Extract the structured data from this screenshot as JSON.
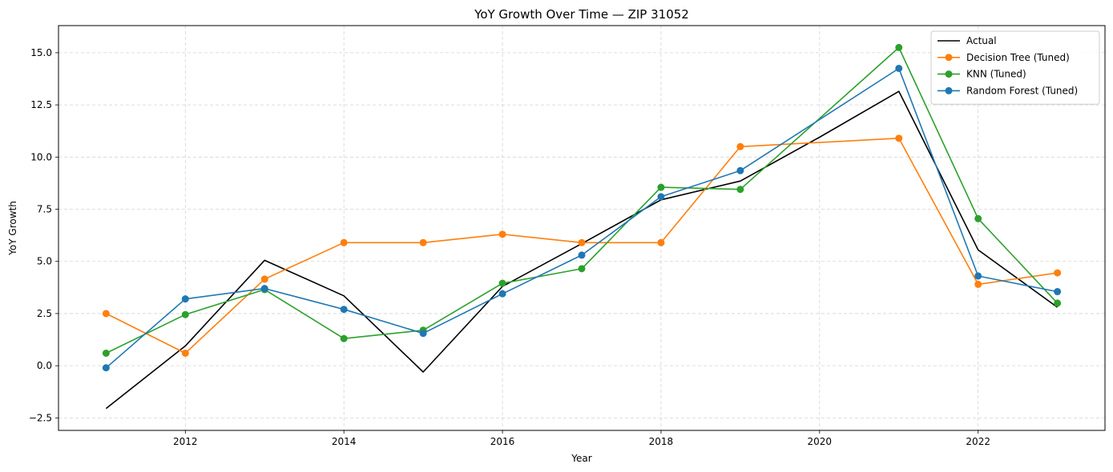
{
  "chart_data": {
    "type": "line",
    "title": "YoY Growth Over Time — ZIP 31052",
    "xlabel": "Year",
    "ylabel": "YoY Growth",
    "x": [
      2011,
      2012,
      2013,
      2014,
      2015,
      2016,
      2017,
      2018,
      2019,
      2020,
      2021,
      2022,
      2023
    ],
    "xlim": [
      2010.4,
      2023.6
    ],
    "ylim": [
      -3.1,
      16.3
    ],
    "xticks": [
      2012,
      2014,
      2016,
      2018,
      2020,
      2022
    ],
    "xtick_labels": [
      "2012",
      "2014",
      "2016",
      "2018",
      "2020",
      "2022"
    ],
    "yticks": [
      -2.5,
      0.0,
      2.5,
      5.0,
      7.5,
      10.0,
      12.5,
      15.0
    ],
    "ytick_labels": [
      "−2.5",
      "0.0",
      "2.5",
      "5.0",
      "7.5",
      "10.0",
      "12.5",
      "15.0"
    ],
    "grid": true,
    "legend_position": "top-right",
    "series": [
      {
        "name": "Actual",
        "color": "#000000",
        "marker": false,
        "values": [
          -2.05,
          0.95,
          5.05,
          3.35,
          -0.3,
          3.8,
          5.85,
          7.95,
          8.85,
          10.95,
          13.15,
          5.55,
          2.8
        ]
      },
      {
        "name": "Decision Tree (Tuned)",
        "color": "#ff7f0e",
        "marker": true,
        "values": [
          2.5,
          0.6,
          4.15,
          5.9,
          5.9,
          6.3,
          5.9,
          5.9,
          10.5,
          null,
          10.9,
          3.9,
          4.45
        ]
      },
      {
        "name": "KNN (Tuned)",
        "color": "#2ca02c",
        "marker": true,
        "values": [
          0.6,
          2.45,
          3.65,
          1.3,
          1.7,
          3.95,
          4.65,
          8.55,
          8.45,
          null,
          15.25,
          7.05,
          3.0
        ]
      },
      {
        "name": "Random Forest (Tuned)",
        "color": "#1f77b4",
        "marker": true,
        "values": [
          -0.1,
          3.2,
          3.7,
          2.7,
          1.55,
          3.45,
          5.3,
          8.1,
          9.35,
          null,
          14.25,
          4.3,
          3.55
        ]
      }
    ]
  }
}
